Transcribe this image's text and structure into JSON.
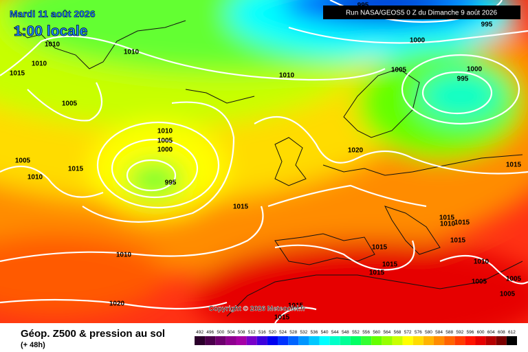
{
  "header": {
    "date": "Mardi 11 août 2026",
    "time": "1:00 locale",
    "run": "Run NASA/GEOS5 0 Z du Dimanche 9 août 2026"
  },
  "map": {
    "copyright": "Copyright © 2026 Meteociel.fr",
    "isobar_labels": [
      "995",
      "995",
      "1000",
      "1010",
      "1010",
      "1010",
      "1015",
      "1010",
      "1005",
      "1000",
      "995",
      "1005",
      "1010",
      "1005",
      "1000",
      "1020",
      "1005",
      "1015",
      "1010",
      "1015",
      "995",
      "1015",
      "1015",
      "1010",
      "1015",
      "1015",
      "1015",
      "1010",
      "1015",
      "1010",
      "1015",
      "1005",
      "1005",
      "1005",
      "1020",
      "1015",
      "1015"
    ]
  },
  "footer": {
    "title": "Géop. Z500 & pression au sol",
    "lead": "(+ 48h)"
  },
  "legend": {
    "levels": [
      492,
      496,
      500,
      504,
      508,
      512,
      516,
      520,
      524,
      528,
      532,
      536,
      540,
      544,
      548,
      552,
      556,
      560,
      564,
      568,
      572,
      576,
      580,
      584,
      588,
      592,
      596,
      600,
      604,
      608,
      612
    ],
    "colors": [
      "#2b002b",
      "#4b004b",
      "#6e006e",
      "#8f008f",
      "#a500a5",
      "#7800c8",
      "#3c00dc",
      "#0000f0",
      "#0032ff",
      "#0064ff",
      "#0096ff",
      "#00c8ff",
      "#00ffff",
      "#00ffc8",
      "#00ff96",
      "#00ff64",
      "#32ff32",
      "#64ff00",
      "#96ff00",
      "#c8ff00",
      "#ffff00",
      "#ffdc00",
      "#ffb400",
      "#ff8c00",
      "#ff6400",
      "#ff3c00",
      "#ff1400",
      "#e60000",
      "#b40000",
      "#7a0000",
      "#000000"
    ]
  }
}
